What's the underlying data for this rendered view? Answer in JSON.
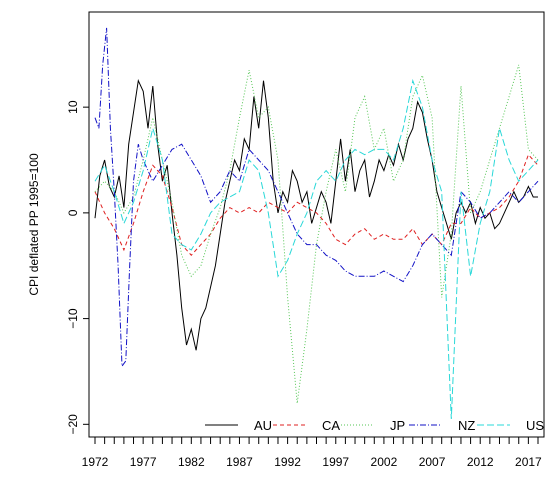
{
  "chart_data": {
    "type": "line",
    "title": "",
    "xlabel": "",
    "ylabel": "CPI deflated PP 1995=100",
    "xlim": [
      1972,
      2018
    ],
    "ylim": [
      -21.2,
      19
    ],
    "grid": false,
    "legend_placement": "bottom-right",
    "x_ticks": [
      1972,
      1973,
      1974,
      1975,
      1976,
      1977,
      1978,
      1979,
      1980,
      1981,
      1982,
      1983,
      1984,
      1985,
      1986,
      1987,
      1988,
      1989,
      1990,
      1991,
      1992,
      1993,
      1994,
      1995,
      1996,
      1997,
      1998,
      1999,
      2000,
      2001,
      2002,
      2003,
      2004,
      2005,
      2006,
      2007,
      2008,
      2009,
      2010,
      2011,
      2012,
      2013,
      2014,
      2015,
      2016,
      2017,
      2018
    ],
    "x_tick_labels": [
      {
        "x": 1972,
        "label": "1972"
      },
      {
        "x": 1977,
        "label": "1977"
      },
      {
        "x": 1982,
        "label": "1982"
      },
      {
        "x": 1987,
        "label": "1987"
      },
      {
        "x": 1992,
        "label": "1992"
      },
      {
        "x": 1997,
        "label": "1997"
      },
      {
        "x": 2002,
        "label": "2002"
      },
      {
        "x": 2007,
        "label": "2007"
      },
      {
        "x": 2012,
        "label": "2012"
      },
      {
        "x": 2017,
        "label": "2017"
      }
    ],
    "y_ticks": [
      {
        "y": -20,
        "label": "−20"
      },
      {
        "y": -10,
        "label": "−10"
      },
      {
        "y": 0,
        "label": "0"
      },
      {
        "y": 10,
        "label": "10"
      }
    ],
    "series": [
      {
        "name": "AU",
        "color": "#000000",
        "dash": "solid",
        "x": [
          1972,
          1972.5,
          1973,
          1973.5,
          1974,
          1974.5,
          1975,
          1975.5,
          1976,
          1976.5,
          1977,
          1977.5,
          1978,
          1978.5,
          1979,
          1979.5,
          1980,
          1980.5,
          1981,
          1981.5,
          1982,
          1982.5,
          1983,
          1983.5,
          1984,
          1984.5,
          1985,
          1985.5,
          1986,
          1986.5,
          1987,
          1987.5,
          1988,
          1988.5,
          1989,
          1989.5,
          1990,
          1990.5,
          1991,
          1991.5,
          1992,
          1992.5,
          1993,
          1993.5,
          1994,
          1994.5,
          1995,
          1995.5,
          1996,
          1996.5,
          1997,
          1997.5,
          1998,
          1998.5,
          1999,
          1999.5,
          2000,
          2000.5,
          2001,
          2001.5,
          2002,
          2002.5,
          2003,
          2003.5,
          2004,
          2004.5,
          2005,
          2005.5,
          2006,
          2006.5,
          2007,
          2007.5,
          2008,
          2008.5,
          2009,
          2009.5,
          2010,
          2010.5,
          2011,
          2011.5,
          2012,
          2012.5,
          2013,
          2013.5,
          2014,
          2014.5,
          2015,
          2015.5,
          2016,
          2016.5,
          2017,
          2017.5,
          2018
        ],
        "y": [
          -0.5,
          3.5,
          5,
          2.5,
          1.5,
          3.5,
          0.5,
          6.5,
          9.5,
          12.5,
          11.5,
          8,
          12,
          6.5,
          3,
          4.5,
          0,
          -4,
          -9,
          -12.5,
          -11,
          -13,
          -10,
          -9,
          -7,
          -5,
          -2,
          1,
          3,
          5,
          4,
          7,
          6,
          11,
          8,
          12.5,
          9,
          3,
          0,
          2,
          1,
          4,
          3,
          1,
          2,
          -1,
          0.5,
          2,
          1,
          -1,
          3,
          7,
          3,
          6,
          2,
          4,
          5,
          1.5,
          3,
          5,
          4,
          5.5,
          4.5,
          6.5,
          5,
          7,
          8,
          10.5,
          9.5,
          7,
          5,
          2,
          0.5,
          -1,
          -2.5,
          0,
          1,
          0,
          1,
          -1,
          0.5,
          -0.5,
          0,
          -1.5,
          -1,
          0,
          1,
          2,
          1,
          1.5,
          2.5,
          1.5,
          1.5
        ]
      },
      {
        "name": "CA",
        "color": "#df2020",
        "dash": "4,3",
        "x": [
          1972,
          1973,
          1974,
          1975,
          1976,
          1977,
          1978,
          1979,
          1980,
          1981,
          1982,
          1983,
          1984,
          1985,
          1986,
          1987,
          1988,
          1989,
          1990,
          1991,
          1992,
          1993,
          1994,
          1995,
          1996,
          1997,
          1998,
          1999,
          2000,
          2001,
          2002,
          2003,
          2004,
          2005,
          2006,
          2007,
          2008,
          2009,
          2010,
          2011,
          2012,
          2013,
          2014,
          2015,
          2016,
          2017,
          2018
        ],
        "y": [
          2,
          0,
          -1.5,
          -3.5,
          -1,
          2,
          4.5,
          3.5,
          0.5,
          -3,
          -4,
          -3,
          -2,
          -0.5,
          0.5,
          0,
          0.5,
          0,
          1,
          0.5,
          0,
          1,
          0.5,
          0,
          -1,
          -2.5,
          -3,
          -2,
          -1.5,
          -2.5,
          -2,
          -2.5,
          -2.5,
          -1.5,
          -3,
          -2,
          -3,
          -1,
          -1,
          0.5,
          -0.5,
          0,
          0.5,
          1.5,
          3,
          5.5,
          4.5
        ]
      },
      {
        "name": "JP",
        "color": "#56c656",
        "dash": "1,2",
        "x": [
          1972,
          1973,
          1974,
          1975,
          1976,
          1977,
          1978,
          1979,
          1980,
          1981,
          1982,
          1983,
          1984,
          1985,
          1986,
          1987,
          1988,
          1989,
          1990,
          1991,
          1992,
          1993,
          1994,
          1995,
          1996,
          1997,
          1998,
          1999,
          2000,
          2001,
          2002,
          2003,
          2004,
          2005,
          2006,
          2007,
          2008,
          2009,
          2010,
          2011,
          2012,
          2013,
          2014,
          2015,
          2016,
          2017,
          2018
        ],
        "y": [
          2,
          3,
          2,
          0,
          1.5,
          5,
          9,
          5,
          1,
          -4,
          -6,
          -5,
          -2,
          0.5,
          4,
          9,
          13.5,
          9,
          10,
          5,
          -8,
          -18,
          -11,
          -3,
          2,
          6,
          2,
          9,
          11,
          6,
          8,
          3,
          5,
          11,
          13,
          9,
          -8,
          -2,
          12,
          0,
          2,
          5,
          8,
          11,
          14,
          6,
          5
        ]
      },
      {
        "name": "NZ",
        "color": "#1212c6",
        "dash": "6,2,1,2",
        "x": [
          1972,
          1972.4,
          1972.8,
          1973.2,
          1973.6,
          1974,
          1974.4,
          1974.8,
          1975.2,
          1975.6,
          1976,
          1976.5,
          1977,
          1978,
          1979,
          1980,
          1981,
          1982,
          1983,
          1984,
          1985,
          1986,
          1987,
          1988,
          1989,
          1990,
          1991,
          1992,
          1993,
          1994,
          1995,
          1996,
          1997,
          1998,
          1999,
          2000,
          2001,
          2002,
          2003,
          2004,
          2005,
          2006,
          2007,
          2008,
          2009,
          2010,
          2011,
          2012,
          2013,
          2014,
          2015,
          2016,
          2017,
          2018
        ],
        "y": [
          9,
          8,
          14,
          17.5,
          8,
          2,
          -5,
          -14.5,
          -14,
          -5,
          3,
          6.5,
          5,
          3,
          4.5,
          6,
          6.5,
          5,
          3.5,
          1,
          2,
          4,
          3,
          6,
          5,
          4,
          2,
          0,
          -2,
          -3,
          -3,
          -4,
          -4.5,
          -5.5,
          -6,
          -6,
          -6,
          -5.5,
          -6,
          -6.5,
          -5,
          -3,
          -2,
          -3,
          -4,
          2,
          1,
          -0.5,
          0,
          1,
          2,
          1,
          2,
          3
        ]
      },
      {
        "name": "US",
        "color": "#2ad8d8",
        "dash": "7,3",
        "x": [
          1972,
          1973,
          1974,
          1975,
          1976,
          1977,
          1978,
          1979,
          1980,
          1981,
          1982,
          1983,
          1984,
          1985,
          1986,
          1987,
          1988,
          1989,
          1990,
          1991,
          1992,
          1993,
          1994,
          1995,
          1996,
          1997,
          1998,
          1999,
          2000,
          2001,
          2002,
          2003,
          2004,
          2005,
          2006,
          2007,
          2008,
          2009,
          2010,
          2011,
          2012,
          2013,
          2014,
          2015,
          2016,
          2017,
          2018
        ],
        "y": [
          3,
          4.5,
          2,
          -1,
          1,
          4,
          8,
          5,
          -2,
          -3,
          -3.5,
          -2,
          0,
          1,
          1.5,
          2,
          5,
          4,
          0,
          -6,
          -4.5,
          -2,
          0,
          3,
          4,
          3,
          5,
          6,
          5.5,
          6,
          6,
          5,
          8,
          12.5,
          10,
          5,
          2,
          -19.5,
          2,
          -6,
          -1,
          2,
          8,
          5,
          3,
          4,
          5
        ]
      }
    ]
  }
}
